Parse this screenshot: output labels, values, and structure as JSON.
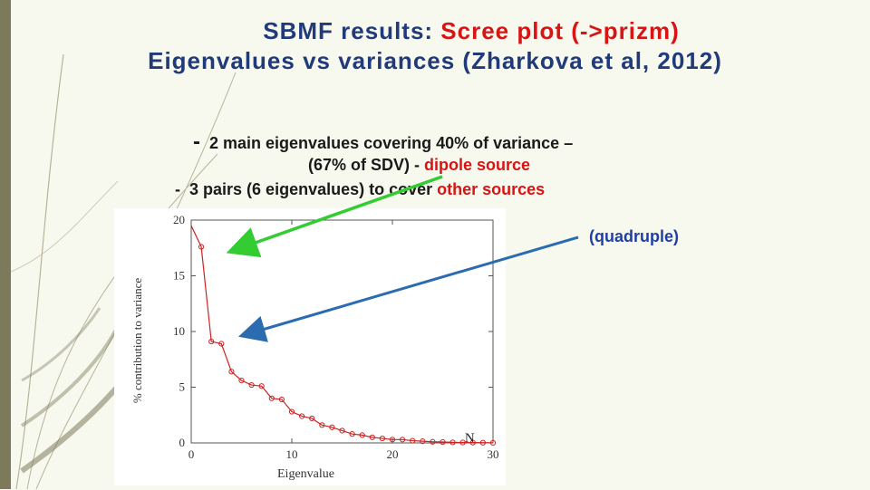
{
  "title": {
    "line1_prefix": "SBMF results: ",
    "line1_highlight": "Scree plot (->prizm)",
    "line2": "Eigenvalues vs variances (Zharkova et al, 2012)"
  },
  "bullets": {
    "b1_marker": "-",
    "b1_text": "2 main eigenvalues covering 40% of variance –",
    "b1_cont_prefix": "(67% of SDV) - ",
    "b1_cont_highlight": "dipole source",
    "b2_marker": "-",
    "b2_prefix": "3 pairs (6 eigenvalues) to cover ",
    "b2_highlight": "other sources"
  },
  "side_note": "(quadruple)",
  "colors": {
    "title": "#203a7a",
    "highlight": "#d81414",
    "plot_line": "#cc2222",
    "arrow_green": "#33cc33",
    "arrow_blue": "#2b6cb0",
    "note": "#1f3fa8"
  },
  "chart_data": {
    "type": "line",
    "xlabel": "Eigenvalue",
    "ylabel": "% contribution to variance",
    "xlim": [
      0,
      30
    ],
    "ylim": [
      0,
      20
    ],
    "x_ticks": [
      "0",
      "10",
      "20",
      "30"
    ],
    "y_ticks": [
      "0",
      "5",
      "10",
      "15",
      "20"
    ],
    "annotation": "N",
    "grid": false,
    "series": [
      {
        "x": [
          1,
          2,
          3,
          4,
          5,
          6,
          7,
          8,
          9,
          10,
          11,
          12,
          13,
          14,
          15,
          16,
          17,
          18,
          19,
          20,
          21,
          22,
          23,
          24,
          25,
          26,
          27,
          28,
          29,
          30
        ],
        "values": [
          17.6,
          9.1,
          8.9,
          6.4,
          5.6,
          5.2,
          5.1,
          4.0,
          3.9,
          2.8,
          2.4,
          2.2,
          1.6,
          1.4,
          1.1,
          0.8,
          0.7,
          0.5,
          0.4,
          0.3,
          0.3,
          0.2,
          0.15,
          0.1,
          0.08,
          0.05,
          0.04,
          0.03,
          0.02,
          0.01
        ]
      }
    ],
    "start_point": [
      0,
      19.5
    ]
  }
}
